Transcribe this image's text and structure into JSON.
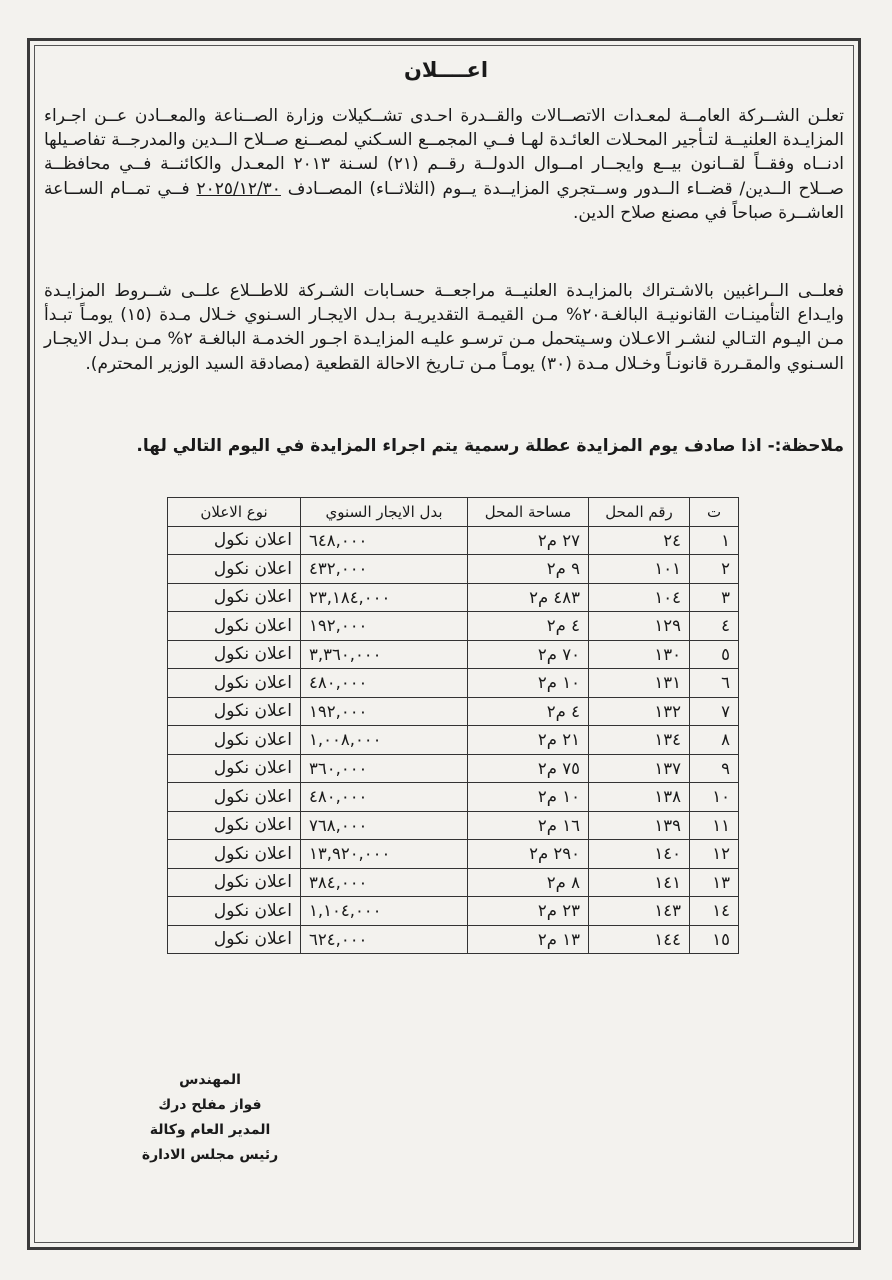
{
  "title": "اعــــلان",
  "paragraph1": {
    "before_date": "تعلـن الشــركة العامــة لمعـدات الاتصــالات والقــدرة احـدى تشــكيلات وزارة الصــناعة والمعــادن عــن اجـراء المزايـدة العلنيــة لتـأجير المحـلات العائـدة لهـا فــي المجمــع السـكني لمصــنع صــلاح الــدين والمدرجــة تفاصـيلها ادنــاه وفقــاً لقــانون بيــع وايجــار امــوال الدولــة رقــم (٢١) لسـنة ٢٠١٣ المعـدل والكائنــة فــي محافظــة صــلاح الــدين/ قضــاء الــدور وســتجري المزايــدة يــوم (الثلاثــاء) المصــادف",
    "date": "٢٠٢٥/١٢/٣٠",
    "after_date": "فــي تمــام الســاعة العاشــرة صباحاً في مصنع صلاح الدين."
  },
  "paragraph2": "فعلــى الــراغبين بالاشـتراك بالمزايـدة العلنيــة مراجعــة حسـابات الشـركة للاطــلاع علــى شــروط المزايـدة وايـداع التأمينـات القانونيـة البالغـة٢٠% مـن القيمـة التقديريـة بـدل الايجـار السـنوي خـلال مـدة (١٥) يومـاً تبـدأ مـن اليـوم التـالي لنشـر الاعـلان وسـيتحمل مـن ترسـو عليـه المزايـدة اجـور الخدمـة البالغـة ٢% مـن بـدل الايجـار السـنوي والمقـررة قانونـاً وخـلال مـدة (٣٠) يومـاً مـن تـاريخ الاحالة القطعية (مصادقة السيد الوزير المحترم).",
  "note": "ملاحظة:- اذا صادف يوم المزايدة عطلة رسمية يتم اجراء المزايدة في اليوم التالي لها.",
  "table": {
    "headers": [
      "ت",
      "رقم المحل",
      "مساحة المحل",
      "بدل الايجار السنوي",
      "نوع الاعلان"
    ],
    "rows": [
      [
        "١",
        "٢٤",
        "٢٧ م٢",
        "٦٤٨,٠٠٠",
        "اعلان نكول"
      ],
      [
        "٢",
        "١٠١",
        "٩ م٢",
        "٤٣٢,٠٠٠",
        "اعلان نكول"
      ],
      [
        "٣",
        "١٠٤",
        "٤٨٣ م٢",
        "٢٣,١٨٤,٠٠٠",
        "اعلان نكول"
      ],
      [
        "٤",
        "١٢٩",
        "٤ م٢",
        "١٩٢,٠٠٠",
        "اعلان نكول"
      ],
      [
        "٥",
        "١٣٠",
        "٧٠ م٢",
        "٣,٣٦٠,٠٠٠",
        "اعلان نكول"
      ],
      [
        "٦",
        "١٣١",
        "١٠ م٢",
        "٤٨٠,٠٠٠",
        "اعلان نكول"
      ],
      [
        "٧",
        "١٣٢",
        "٤ م٢",
        "١٩٢,٠٠٠",
        "اعلان نكول"
      ],
      [
        "٨",
        "١٣٤",
        "٢١ م٢",
        "١,٠٠٨,٠٠٠",
        "اعلان نكول"
      ],
      [
        "٩",
        "١٣٧",
        "٧٥ م٢",
        "٣٦٠,٠٠٠",
        "اعلان نكول"
      ],
      [
        "١٠",
        "١٣٨",
        "١٠ م٢",
        "٤٨٠,٠٠٠",
        "اعلان نكول"
      ],
      [
        "١١",
        "١٣٩",
        "١٦ م٢",
        "٧٦٨,٠٠٠",
        "اعلان نكول"
      ],
      [
        "١٢",
        "١٤٠",
        "٢٩٠ م٢",
        "١٣,٩٢٠,٠٠٠",
        "اعلان نكول"
      ],
      [
        "١٣",
        "١٤١",
        "٨ م٢",
        "٣٨٤,٠٠٠",
        "اعلان نكول"
      ],
      [
        "١٤",
        "١٤٣",
        "٢٣ م٢",
        "١,١٠٤,٠٠٠",
        "اعلان نكول"
      ],
      [
        "١٥",
        "١٤٤",
        "١٣ م٢",
        "٦٢٤,٠٠٠",
        "اعلان نكول"
      ]
    ]
  },
  "signature": [
    "المهندس",
    "فواز مفلح درك",
    "المدير العام وكالة",
    "رئيس مجلس الادارة"
  ]
}
